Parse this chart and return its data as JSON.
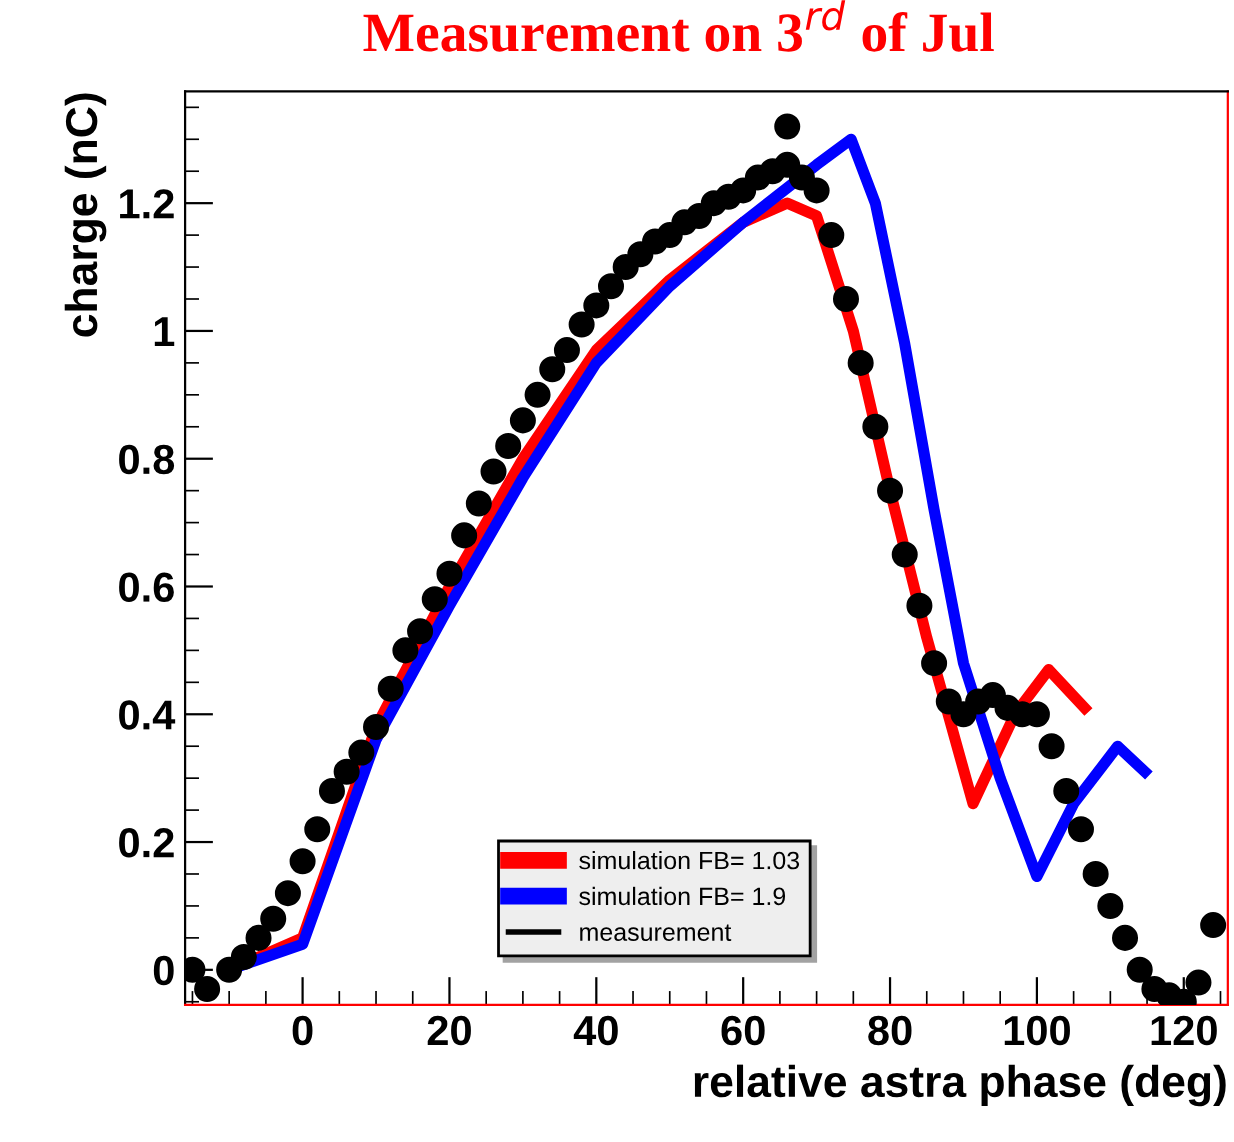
{
  "chart_data": {
    "type": "line",
    "title": "Measurement on 3$^{rd}$ of Jul",
    "xlabel": "relative astra phase (deg)",
    "ylabel": "charge (nC)",
    "xlim": [
      -16,
      126
    ],
    "ylim": [
      -0.055,
      1.375
    ],
    "xticks": [
      0,
      20,
      40,
      60,
      80,
      100,
      120
    ],
    "yticks": [
      0,
      0.2,
      0.4,
      0.6,
      0.8,
      1,
      1.2
    ],
    "grid": false,
    "legend": "bottom",
    "series": [
      {
        "name": "simulation FB= 1.03",
        "color": "#ff0000",
        "marker": "none",
        "x": [
          -10,
          0,
          10,
          20,
          30,
          40,
          50,
          60,
          66,
          70,
          75,
          80,
          85,
          91.3,
          97,
          101.6,
          106.5
        ],
        "values": [
          0,
          0.05,
          0.38,
          0.6,
          0.8,
          0.97,
          1.08,
          1.17,
          1.2,
          1.18,
          1.0,
          0.75,
          0.52,
          0.26,
          0.4,
          0.47,
          0.41
        ]
      },
      {
        "name": "simulation FB= 1.9",
        "color": "#0000ff",
        "marker": "none",
        "x": [
          -10,
          0,
          10,
          20,
          30,
          40,
          50,
          60,
          70,
          74.7,
          78,
          82,
          86,
          90,
          95,
          100,
          105,
          111,
          114.7
        ],
        "values": [
          0,
          0.04,
          0.36,
          0.57,
          0.77,
          0.95,
          1.07,
          1.17,
          1.26,
          1.3,
          1.2,
          0.98,
          0.72,
          0.48,
          0.3,
          0.146,
          0.26,
          0.35,
          0.31
        ]
      },
      {
        "name": "measurement",
        "type": "scatter",
        "color": "#000000",
        "marker": "circle",
        "x": [
          -15,
          -13,
          -10,
          -8,
          -6,
          -4,
          -2,
          0,
          2,
          4,
          6,
          8,
          10,
          12,
          14,
          16,
          18,
          20,
          22,
          24,
          26,
          28,
          30,
          32,
          34,
          36,
          38,
          40,
          42,
          44,
          46,
          48,
          50,
          52,
          54,
          56,
          58,
          60,
          62,
          64,
          66,
          66,
          68,
          70,
          72,
          74,
          76,
          78,
          80,
          82,
          84,
          86,
          88,
          90,
          92,
          94,
          96,
          98,
          100,
          102,
          104,
          106,
          108,
          110,
          112,
          114,
          116,
          118,
          120,
          122,
          124
        ],
        "values": [
          0,
          -0.03,
          0.0,
          0.02,
          0.05,
          0.08,
          0.12,
          0.17,
          0.22,
          0.28,
          0.31,
          0.34,
          0.38,
          0.44,
          0.5,
          0.53,
          0.58,
          0.62,
          0.68,
          0.73,
          0.78,
          0.82,
          0.86,
          0.9,
          0.94,
          0.97,
          1.01,
          1.04,
          1.07,
          1.1,
          1.12,
          1.14,
          1.15,
          1.17,
          1.18,
          1.2,
          1.21,
          1.22,
          1.24,
          1.25,
          1.26,
          1.32,
          1.24,
          1.22,
          1.15,
          1.05,
          0.95,
          0.85,
          0.75,
          0.65,
          0.57,
          0.48,
          0.42,
          0.4,
          0.42,
          0.43,
          0.41,
          0.4,
          0.4,
          0.35,
          0.28,
          0.22,
          0.15,
          0.1,
          0.05,
          0.0,
          -0.03,
          -0.04,
          -0.05,
          -0.02,
          0.07
        ]
      }
    ]
  }
}
